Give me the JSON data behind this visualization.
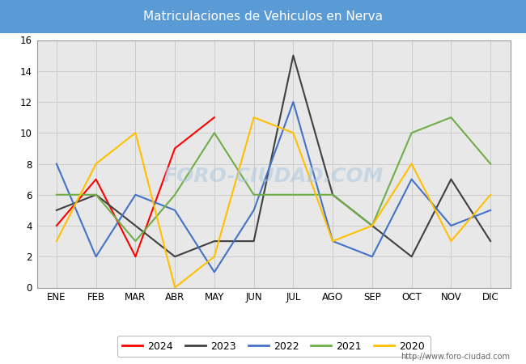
{
  "title": "Matriculaciones de Vehiculos en Nerva",
  "title_bg_color": "#5b9bd5",
  "months": [
    "ENE",
    "FEB",
    "MAR",
    "ABR",
    "MAY",
    "JUN",
    "JUL",
    "AGO",
    "SEP",
    "OCT",
    "NOV",
    "DIC"
  ],
  "series": {
    "2024": {
      "color": "#ff0000",
      "data": [
        4,
        7,
        2,
        9,
        11,
        null,
        null,
        null,
        null,
        null,
        null,
        null
      ]
    },
    "2023": {
      "color": "#404040",
      "data": [
        5,
        6,
        4,
        2,
        3,
        3,
        15,
        6,
        4,
        2,
        7,
        3
      ]
    },
    "2022": {
      "color": "#4472c4",
      "data": [
        8,
        2,
        6,
        5,
        1,
        5,
        12,
        3,
        2,
        7,
        4,
        5
      ]
    },
    "2021": {
      "color": "#70ad47",
      "data": [
        6,
        6,
        3,
        6,
        10,
        6,
        6,
        6,
        4,
        10,
        11,
        8
      ]
    },
    "2020": {
      "color": "#ffc000",
      "data": [
        3,
        8,
        10,
        0,
        2,
        11,
        10,
        3,
        4,
        8,
        3,
        6
      ]
    }
  },
  "ylim": [
    0,
    16
  ],
  "yticks": [
    0,
    2,
    4,
    6,
    8,
    10,
    12,
    14,
    16
  ],
  "grid_color": "#cccccc",
  "plot_bg_color": "#e8e8e8",
  "watermark": "FORO-CIUDAD.COM",
  "url": "http://www.foro-ciudad.com",
  "legend_order": [
    "2024",
    "2023",
    "2022",
    "2021",
    "2020"
  ]
}
